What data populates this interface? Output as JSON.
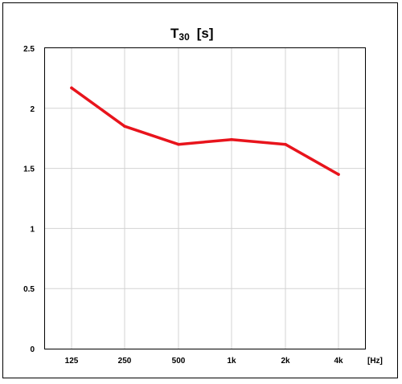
{
  "chart_data": {
    "type": "line",
    "title_main": "T",
    "title_sub": "30",
    "title_unit": "[s]",
    "xunit": "[Hz]",
    "categories": [
      "125",
      "250",
      "500",
      "1k",
      "2k",
      "4k"
    ],
    "series": [
      {
        "values": [
          2.17,
          1.85,
          1.7,
          1.74,
          1.7,
          1.45
        ],
        "color": "#e8141c"
      }
    ],
    "ylim": [
      0,
      2.5
    ],
    "yticks": [
      "0",
      "0.5",
      "1",
      "1.5",
      "2",
      "2.5"
    ],
    "grid": true
  }
}
